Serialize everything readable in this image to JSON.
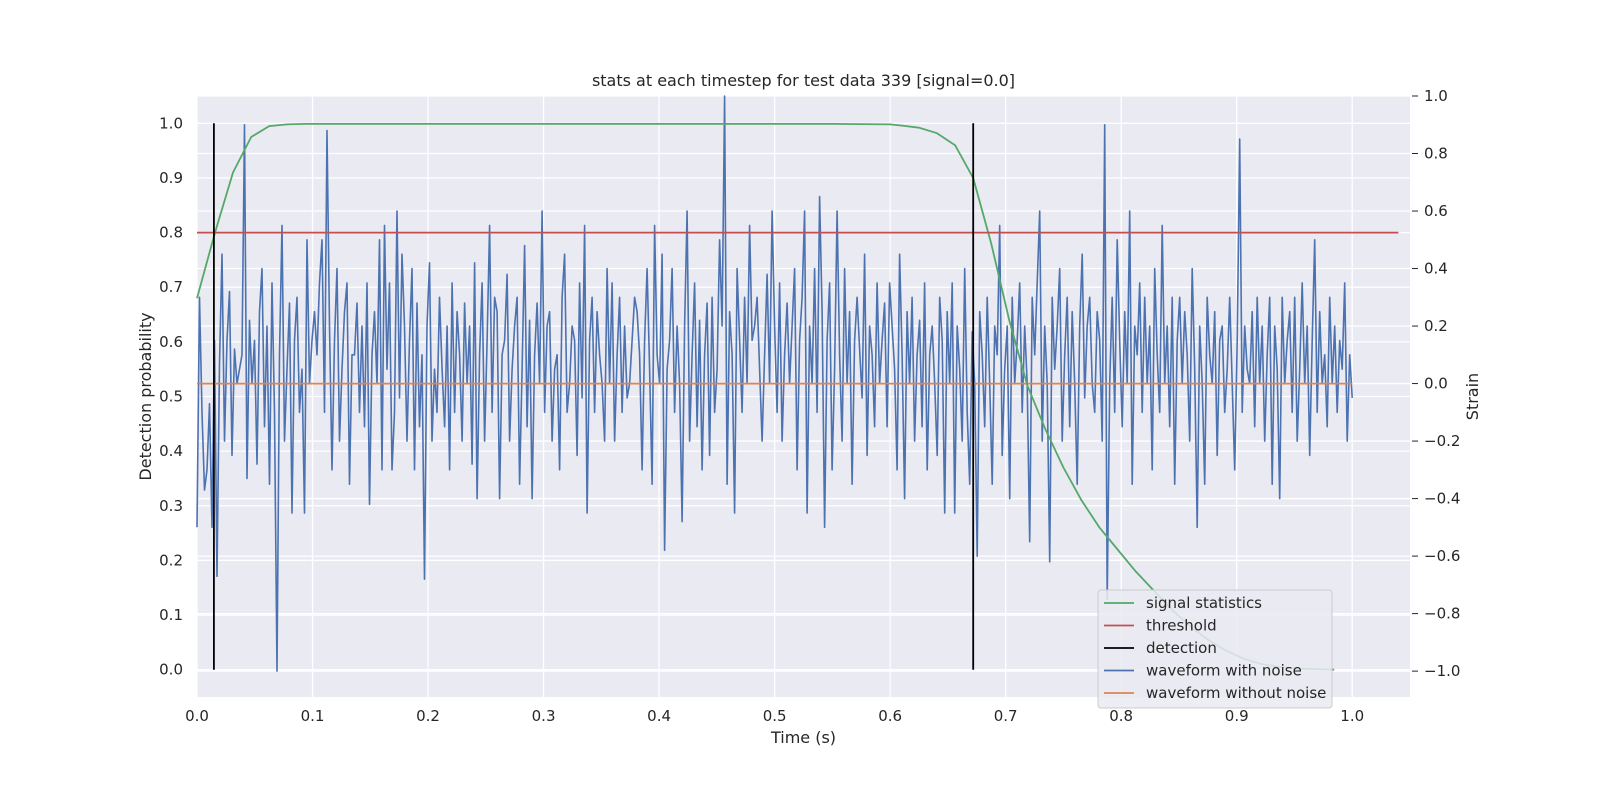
{
  "chart_data": {
    "type": "line",
    "title": "stats at each timestep for test data 339 [signal=0.0]",
    "xlabel": "Time (s)",
    "ylabel": "Detection probability",
    "y2label": "Strain",
    "xlim": [
      0.0,
      1.05
    ],
    "ylim": [
      -0.05,
      1.05
    ],
    "y2lim": [
      -1.09,
      1.0
    ],
    "xticks": [
      "0.0",
      "0.1",
      "0.2",
      "0.3",
      "0.4",
      "0.5",
      "0.6",
      "0.7",
      "0.8",
      "0.9",
      "1.0"
    ],
    "yticks": [
      "0.0",
      "0.1",
      "0.2",
      "0.3",
      "0.4",
      "0.5",
      "0.6",
      "0.7",
      "0.8",
      "0.9",
      "1.0"
    ],
    "y2ticks": [
      "−1.0",
      "−0.8",
      "−0.6",
      "−0.4",
      "−0.2",
      "0.0",
      "0.2",
      "0.4",
      "0.6",
      "0.8",
      "1.0"
    ],
    "grid": true,
    "legend_position": "lower right",
    "colors": {
      "signal_statistics": "#55a868",
      "threshold": "#c44e52",
      "detection": "#000000",
      "waveform_with_noise": "#4c72b0",
      "waveform_without_noise": "#dd8452",
      "background": "#eaeaf2"
    },
    "series": [
      {
        "name": "signal statistics",
        "axis": "left",
        "x": [
          0.0,
          0.0156,
          0.0312,
          0.0469,
          0.0625,
          0.0781,
          0.0938,
          0.1094,
          0.125,
          0.2,
          0.3,
          0.4,
          0.5,
          0.55,
          0.6,
          0.6094,
          0.625,
          0.6406,
          0.6562,
          0.6719,
          0.6875,
          0.7031,
          0.7188,
          0.7344,
          0.75,
          0.7656,
          0.7812,
          0.7969,
          0.8125,
          0.8281,
          0.8438,
          0.8594,
          0.875,
          0.8906,
          0.9062,
          0.9219,
          0.9375,
          0.9531,
          0.9688,
          0.9844
        ],
        "y": [
          0.68,
          0.8,
          0.91,
          0.975,
          0.995,
          0.998,
          0.999,
          0.999,
          0.999,
          0.999,
          0.999,
          0.999,
          0.999,
          0.999,
          0.998,
          0.996,
          0.992,
          0.982,
          0.96,
          0.9,
          0.78,
          0.64,
          0.52,
          0.44,
          0.37,
          0.31,
          0.26,
          0.22,
          0.18,
          0.145,
          0.11,
          0.08,
          0.055,
          0.035,
          0.02,
          0.01,
          0.005,
          0.002,
          0.001,
          0.0
        ]
      },
      {
        "name": "threshold",
        "axis": "left",
        "x": [
          0.0,
          1.04
        ],
        "y": [
          0.8,
          0.8
        ]
      },
      {
        "name": "detection",
        "axis": "left",
        "x": [
          0.0146,
          0.0146,
          null,
          0.6719,
          0.6719
        ],
        "y": [
          0.0,
          1.0,
          null,
          0.0,
          1.0
        ]
      },
      {
        "name": "waveform with noise",
        "axis": "right",
        "x_start": 0.0,
        "x_end": 1.0,
        "y": [
          -0.5,
          0.3,
          -0.1,
          -0.37,
          -0.3,
          -0.07,
          -0.5,
          0.15,
          -0.67,
          0.07,
          0.45,
          -0.2,
          0.15,
          0.32,
          -0.25,
          0.12,
          0.0,
          0.05,
          0.1,
          0.9,
          -0.33,
          0.22,
          0.0,
          0.15,
          -0.28,
          0.25,
          0.4,
          -0.15,
          0.2,
          -0.35,
          0.35,
          -0.1,
          -1.0,
          0.1,
          0.55,
          -0.2,
          0.05,
          0.28,
          -0.45,
          0.15,
          0.3,
          -0.1,
          0.05,
          -0.45,
          0.5,
          0.0,
          0.15,
          0.25,
          0.1,
          0.35,
          0.5,
          -0.1,
          0.88,
          0.2,
          -0.3,
          0.15,
          0.4,
          -0.2,
          0.05,
          0.25,
          0.35,
          -0.35,
          0.1,
          0.1,
          0.28,
          -0.1,
          0.2,
          -0.15,
          0.35,
          -0.42,
          0.1,
          0.25,
          0.0,
          0.5,
          -0.3,
          0.55,
          0.05,
          0.35,
          -0.3,
          -0.1,
          0.6,
          -0.05,
          0.45,
          0.2,
          -0.2,
          0.15,
          0.4,
          -0.3,
          0.28,
          -0.15,
          0.1,
          -0.68,
          0.2,
          0.42,
          -0.2,
          0.05,
          -0.1,
          0.3,
          0.05,
          -0.15,
          0.2,
          -0.3,
          0.35,
          -0.1,
          0.25,
          0.1,
          -0.2,
          0.28,
          0.0,
          0.2,
          -0.28,
          0.42,
          -0.4,
          0.1,
          0.35,
          -0.2,
          0.15,
          0.55,
          -0.1,
          0.3,
          0.25,
          -0.4,
          0.1,
          0.15,
          0.38,
          -0.2,
          0.05,
          0.2,
          0.3,
          -0.35,
          0.05,
          0.48,
          -0.15,
          0.22,
          -0.4,
          0.1,
          0.28,
          0.0,
          0.6,
          -0.1,
          0.2,
          0.25,
          -0.2,
          0.05,
          0.1,
          -0.3,
          0.3,
          0.45,
          -0.1,
          0.0,
          0.2,
          0.15,
          -0.25,
          0.35,
          -0.05,
          0.55,
          -0.45,
          0.15,
          0.3,
          -0.1,
          0.25,
          0.1,
          0.0,
          -0.2,
          0.4,
          0.0,
          0.35,
          -0.2,
          0.1,
          0.3,
          -0.1,
          0.2,
          -0.05,
          0.0,
          0.15,
          0.3,
          0.25,
          0.1,
          -0.3,
          0.15,
          0.4,
          0.05,
          -0.35,
          0.55,
          0.1,
          0.0,
          0.45,
          -0.58,
          0.05,
          0.15,
          0.4,
          -0.1,
          0.2,
          0.0,
          -0.48,
          0.2,
          0.6,
          -0.2,
          0.1,
          0.35,
          -0.15,
          0.22,
          -0.3,
          0.1,
          0.28,
          -0.25,
          0.3,
          -0.1,
          0.05,
          0.5,
          0.2,
          1.0,
          -0.35,
          0.25,
          0.1,
          -0.45,
          0.4,
          0.15,
          -0.1,
          0.3,
          0.0,
          0.55,
          0.15,
          0.2,
          0.3,
          0.05,
          -0.2,
          0.1,
          0.38,
          0.0,
          0.6,
          0.2,
          -0.1,
          0.35,
          -0.2,
          0.1,
          0.28,
          0.0,
          0.2,
          0.4,
          -0.3,
          0.15,
          0.3,
          0.6,
          -0.45,
          0.2,
          0.0,
          0.4,
          -0.1,
          0.65,
          0.25,
          -0.5,
          0.15,
          0.35,
          -0.3,
          0.05,
          0.6,
          0.1,
          -0.2,
          0.4,
          0.0,
          0.25,
          -0.35,
          0.15,
          0.3,
          0.12,
          -0.05,
          0.45,
          -0.25,
          0.2,
          0.1,
          -0.15,
          0.35,
          0.0,
          0.15,
          0.28,
          -0.15,
          0.35,
          0.2,
          0.05,
          -0.3,
          0.45,
          0.1,
          -0.4,
          0.25,
          0.0,
          0.3,
          -0.2,
          0.1,
          0.22,
          -0.15,
          0.35,
          -0.3,
          0.1,
          0.2,
          0.0,
          -0.25,
          0.3,
          0.15,
          -0.45,
          0.25,
          0.0,
          0.35,
          -0.45,
          0.2,
          0.05,
          -0.2,
          0.4,
          -0.1,
          -0.35,
          0.18,
          0.0,
          -0.6,
          0.25,
          0.1,
          -0.15,
          0.3,
          0.0,
          -0.35,
          0.2,
          0.1,
          0.55,
          -0.25,
          0.05,
          0.2,
          -0.4,
          0.3,
          0.0,
          0.15,
          0.35,
          -0.1,
          0.2,
          0.0,
          -0.55,
          0.3,
          0.1,
          0.35,
          0.6,
          -0.2,
          0.2,
          0.0,
          -0.62,
          0.3,
          0.05,
          0.2,
          0.4,
          -0.2,
          0.1,
          0.3,
          -0.15,
          0.25,
          0.0,
          -0.35,
          0.2,
          0.45,
          -0.05,
          0.2,
          0.3,
          0.0,
          -0.1,
          0.25,
          0.15,
          -0.2,
          0.9,
          -0.75,
          0.0,
          0.3,
          -0.1,
          0.5,
          0.15,
          -0.15,
          0.25,
          0.0,
          0.6,
          -0.35,
          0.2,
          0.1,
          0.35,
          -0.1,
          0.3,
          0.0,
          0.2,
          -0.3,
          0.4,
          0.1,
          -0.1,
          0.55,
          0.0,
          0.2,
          -0.15,
          0.3,
          -0.35,
          0.15,
          0.3,
          0.0,
          0.25,
          0.1,
          -0.2,
          0.4,
          0.05,
          -0.5,
          0.2,
          0.0,
          -0.35,
          0.3,
          0.1,
          0.0,
          0.25,
          -0.25,
          0.15,
          0.2,
          -0.1,
          0.05,
          0.3,
          0.0,
          -0.3,
          0.15,
          0.85,
          -0.1,
          0.2,
          0.05,
          0.0,
          0.25,
          -0.15,
          0.3,
          0.0,
          0.2,
          -0.2,
          0.1,
          0.3,
          -0.35,
          0.2,
          0.05,
          -0.4,
          0.3,
          0.0,
          0.15,
          0.25,
          -0.1,
          0.3,
          -0.2,
          0.05,
          0.35,
          0.0,
          0.2,
          -0.25,
          0.15,
          0.5,
          -0.1,
          0.25,
          0.0,
          0.1,
          -0.15,
          0.3,
          0.0,
          0.2,
          -0.1,
          0.15,
          0.05,
          0.35,
          -0.2,
          0.1,
          -0.05
        ],
        "note_excluded": false
      },
      {
        "name": "waveform without noise",
        "axis": "right",
        "x": [
          0.0,
          1.0
        ],
        "y": [
          0.0,
          0.0
        ]
      }
    ],
    "legend": [
      "signal statistics",
      "threshold",
      "detection",
      "waveform with noise",
      "waveform without noise"
    ]
  }
}
